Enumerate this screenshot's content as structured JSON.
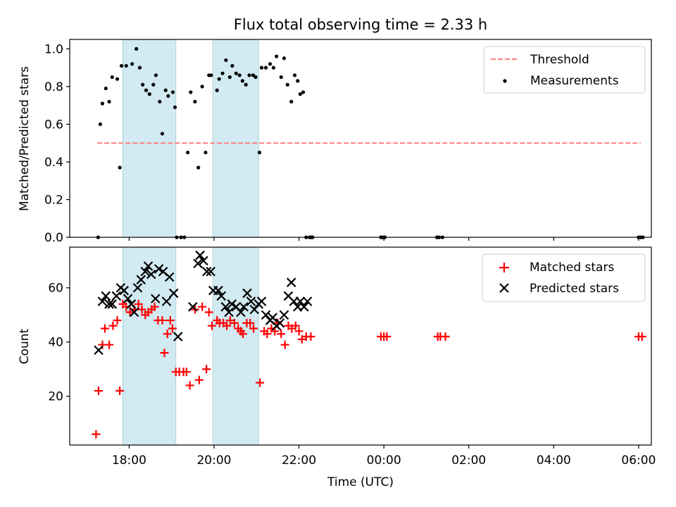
{
  "chart_data": [
    {
      "type": "scatter",
      "title": "Flux total observing time = 2.33 h",
      "xlabel": "",
      "ylabel": "Matched/Predicted stars",
      "xlim": [
        16.6,
        30.3
      ],
      "ylim": [
        0.0,
        1.05
      ],
      "yticks": [
        0.0,
        0.2,
        0.4,
        0.6,
        0.8,
        1.0
      ],
      "ytick_labels": [
        "0.0",
        "0.2",
        "0.4",
        "0.6",
        "0.8",
        "1.0"
      ],
      "shaded_intervals": [
        [
          17.85,
          19.1
        ],
        [
          19.97,
          21.05
        ]
      ],
      "shade_color": "#add8e6",
      "legend_position": "upper right",
      "threshold": {
        "label": "Threshold",
        "value": 0.5,
        "x_range": [
          17.25,
          30.05
        ],
        "color": "#ff7f7f"
      },
      "series": [
        {
          "name": "Measurements",
          "color": "#000000",
          "x": [
            17.27,
            17.32,
            17.37,
            17.45,
            17.53,
            17.6,
            17.72,
            17.78,
            17.82,
            17.93,
            18.07,
            18.17,
            18.25,
            18.32,
            18.4,
            18.48,
            18.57,
            18.63,
            18.72,
            18.78,
            18.86,
            18.92,
            19.03,
            19.08,
            19.12,
            19.22,
            19.3,
            19.38,
            19.45,
            19.55,
            19.63,
            19.72,
            19.8,
            19.88,
            19.93,
            20.07,
            20.12,
            20.2,
            20.28,
            20.37,
            20.43,
            20.52,
            20.6,
            20.67,
            20.75,
            20.83,
            20.92,
            20.98,
            21.07,
            21.12,
            21.22,
            21.32,
            21.4,
            21.47,
            21.58,
            21.65,
            21.73,
            21.82,
            21.9,
            21.97,
            22.03,
            22.1,
            22.17,
            22.25,
            22.28,
            22.32,
            22.3,
            23.93,
            23.97,
            24.02,
            25.25,
            25.3,
            25.38,
            30.0,
            30.05,
            30.1
          ],
          "y": [
            0.0,
            0.6,
            0.71,
            0.79,
            0.72,
            0.85,
            0.84,
            0.37,
            0.91,
            0.91,
            0.92,
            1.0,
            0.9,
            0.81,
            0.78,
            0.76,
            0.81,
            0.86,
            0.72,
            0.55,
            0.78,
            0.75,
            0.77,
            0.69,
            0.0,
            0.0,
            0.0,
            0.45,
            0.77,
            0.72,
            0.37,
            0.8,
            0.45,
            0.86,
            0.86,
            0.78,
            0.84,
            0.87,
            0.94,
            0.85,
            0.91,
            0.87,
            0.86,
            0.83,
            0.81,
            0.86,
            0.86,
            0.85,
            0.45,
            0.9,
            0.9,
            0.92,
            0.9,
            0.96,
            0.85,
            0.95,
            0.81,
            0.72,
            0.86,
            0.83,
            0.76,
            0.77,
            0.0,
            0.0,
            0.0,
            0.0,
            0.0,
            0.0,
            0.0,
            0.0,
            0.0,
            0.0,
            0.0,
            0.0,
            0.0,
            0.0
          ]
        }
      ]
    },
    {
      "type": "scatter",
      "title": "",
      "xlabel": "Time (UTC)",
      "ylabel": "Count",
      "xlim": [
        16.6,
        30.3
      ],
      "ylim": [
        2,
        75
      ],
      "yticks": [
        20,
        40,
        60
      ],
      "ytick_labels": [
        "20",
        "40",
        "60"
      ],
      "xticks": [
        18,
        20,
        22,
        24,
        26,
        28,
        30
      ],
      "xtick_labels": [
        "18:00",
        "20:00",
        "22:00",
        "00:00",
        "02:00",
        "04:00",
        "06:00"
      ],
      "shaded_intervals": [
        [
          17.85,
          19.1
        ],
        [
          19.97,
          21.05
        ]
      ],
      "shade_color": "#add8e6",
      "legend_position": "upper right",
      "series": [
        {
          "name": "Matched stars",
          "marker": "plus",
          "color": "#ff0000",
          "x": [
            17.22,
            17.28,
            17.37,
            17.43,
            17.53,
            17.62,
            17.72,
            17.78,
            17.85,
            17.93,
            18.02,
            18.12,
            18.22,
            18.3,
            18.38,
            18.45,
            18.53,
            18.6,
            18.68,
            18.78,
            18.83,
            18.9,
            18.97,
            19.02,
            19.1,
            19.18,
            19.28,
            19.35,
            19.43,
            19.55,
            19.65,
            19.72,
            19.82,
            19.88,
            19.95,
            20.07,
            20.13,
            20.22,
            20.3,
            20.38,
            20.48,
            20.57,
            20.63,
            20.68,
            20.77,
            20.85,
            20.93,
            21.08,
            21.18,
            21.25,
            21.35,
            21.43,
            21.5,
            21.58,
            21.67,
            21.75,
            21.83,
            21.92,
            22.0,
            22.07,
            22.17,
            22.28,
            23.93,
            24.0,
            24.07,
            25.27,
            25.33,
            25.45,
            30.0,
            30.08
          ],
          "y": [
            6,
            22,
            39,
            45,
            39,
            46,
            48,
            22,
            54,
            53,
            51,
            52,
            54,
            52,
            50,
            51,
            52,
            53,
            48,
            48,
            36,
            43,
            48,
            45,
            29,
            29,
            29,
            29,
            24,
            52,
            26,
            53,
            30,
            51,
            46,
            48,
            47,
            47,
            46,
            48,
            47,
            45,
            44,
            43,
            47,
            47,
            45,
            25,
            44,
            43,
            45,
            44,
            47,
            43,
            39,
            46,
            45,
            46,
            44,
            41,
            42,
            42,
            42,
            42,
            42,
            42,
            42,
            42,
            42,
            42
          ]
        },
        {
          "name": "Predicted stars",
          "marker": "x",
          "color": "#000000",
          "x": [
            17.28,
            17.37,
            17.45,
            17.53,
            17.6,
            17.7,
            17.8,
            17.88,
            17.97,
            18.05,
            18.12,
            18.2,
            18.28,
            18.38,
            18.45,
            18.52,
            18.62,
            18.7,
            18.8,
            18.88,
            18.95,
            19.05,
            19.15,
            19.5,
            19.62,
            19.67,
            19.75,
            19.83,
            19.92,
            19.98,
            20.1,
            20.17,
            20.27,
            20.35,
            20.42,
            20.52,
            20.63,
            20.7,
            20.78,
            20.87,
            20.95,
            21.05,
            21.12,
            21.22,
            21.32,
            21.38,
            21.47,
            21.55,
            21.65,
            21.75,
            21.82,
            21.88,
            21.97,
            22.03,
            22.12,
            22.2
          ],
          "y": [
            37,
            55,
            57,
            54,
            54,
            57,
            60,
            59,
            56,
            54,
            51,
            60,
            63,
            66,
            68,
            65,
            56,
            67,
            66,
            55,
            64,
            58,
            42,
            53,
            69,
            72,
            70,
            66,
            66,
            59,
            59,
            57,
            53,
            51,
            54,
            53,
            51,
            53,
            58,
            55,
            52,
            54,
            55,
            50,
            48,
            49,
            46,
            47,
            50,
            57,
            62,
            55,
            53,
            55,
            53,
            55
          ]
        }
      ]
    }
  ]
}
